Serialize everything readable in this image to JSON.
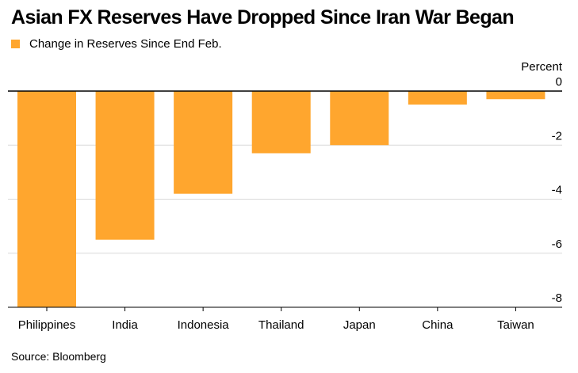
{
  "title": "Asian FX Reserves Have Dropped Since Iran War Began",
  "source": "Source: Bloomberg",
  "colors": {
    "bar": "#FFA62E",
    "grid": "#d9d9d9",
    "zero_line": "#000000",
    "text": "#000000"
  },
  "chart_data": {
    "type": "bar",
    "title": "Asian FX Reserves Have Dropped Since Iran War Began",
    "legend_position": "top-left",
    "grid": true,
    "categories": [
      "Philippines",
      "India",
      "Indonesia",
      "Thailand",
      "Japan",
      "China",
      "Taiwan"
    ],
    "series": [
      {
        "name": "Change in Reserves Since End Feb.",
        "values": [
          -8.0,
          -5.5,
          -3.8,
          -2.3,
          -2.0,
          -0.5,
          -0.3
        ]
      }
    ],
    "ylabel": "Percent",
    "ylim": [
      -8,
      0
    ],
    "yticks": [
      0,
      -2,
      -4,
      -6,
      -8
    ],
    "ytick_labels": [
      "0",
      "-2",
      "-4",
      "-6",
      "-8"
    ],
    "y_axis_side": "right"
  }
}
